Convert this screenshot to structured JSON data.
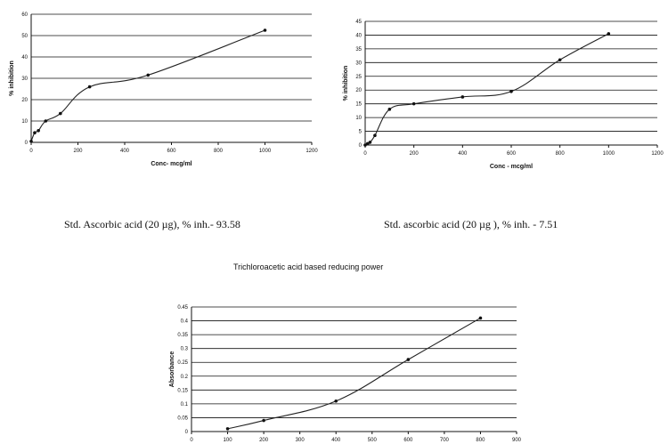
{
  "captions": {
    "left": "Std. Ascorbic acid (20 µg), % inh.- 93.58",
    "right": "Std. ascorbic acid (20 µg ), % inh. - 7.51"
  },
  "chart_data": [
    {
      "type": "line",
      "title": "",
      "xlabel": "Conc- mcg/ml",
      "ylabel": "% inhibition",
      "xlim": [
        0,
        1200
      ],
      "ylim": [
        0,
        60
      ],
      "xticks": [
        0,
        200,
        400,
        600,
        800,
        1000,
        1200
      ],
      "yticks": [
        0,
        10,
        20,
        30,
        40,
        50,
        60
      ],
      "grid": true,
      "series": [
        {
          "x": [
            0,
            15,
            31,
            62,
            125,
            250,
            500,
            1000
          ],
          "y": [
            0.5,
            4.5,
            5.5,
            10,
            13.5,
            26,
            31.5,
            52.5
          ]
        }
      ]
    },
    {
      "type": "line",
      "title": "",
      "xlabel": "Conc - mcg/ml",
      "ylabel": "% inhibition",
      "xlim": [
        0,
        1200
      ],
      "ylim": [
        0,
        45
      ],
      "xticks": [
        0,
        200,
        400,
        600,
        800,
        1000,
        1200
      ],
      "yticks": [
        0,
        5,
        10,
        15,
        20,
        25,
        30,
        35,
        40,
        45
      ],
      "grid": true,
      "series": [
        {
          "x": [
            0,
            10,
            20,
            40,
            100,
            200,
            400,
            600,
            800,
            1000
          ],
          "y": [
            0,
            0.5,
            1,
            3.5,
            13,
            15,
            17.5,
            19.5,
            31,
            40.5
          ]
        }
      ]
    },
    {
      "type": "line",
      "title": "Trichloroacetic acid based reducing power",
      "xlabel": "",
      "ylabel": "Absorbance",
      "xlim": [
        0,
        900
      ],
      "ylim": [
        0,
        0.45
      ],
      "xticks": [
        0,
        100,
        200,
        300,
        400,
        500,
        600,
        700,
        800,
        900
      ],
      "yticks": [
        0,
        0.05,
        0.1,
        0.15,
        0.2,
        0.25,
        0.3,
        0.35,
        0.4,
        0.45
      ],
      "ytick_labels": [
        "0",
        "0.05",
        "0.1",
        "0.15",
        "0.2",
        "0.25",
        "0.3",
        "0.35",
        "0.4",
        "0.45"
      ],
      "grid": true,
      "series": [
        {
          "x": [
            100,
            200,
            400,
            600,
            800
          ],
          "y": [
            0.01,
            0.04,
            0.11,
            0.26,
            0.41
          ]
        }
      ]
    }
  ]
}
